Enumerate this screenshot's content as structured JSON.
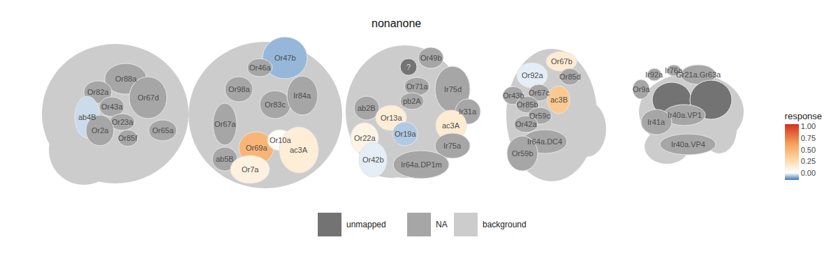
{
  "chart_data": {
    "type": "glomerulus_map",
    "title": "nonanone",
    "colorbar": {
      "title": "response",
      "range": [
        -0.15,
        1.05
      ],
      "ticks": [
        {
          "value": 0,
          "label": "0.00"
        },
        {
          "value": 0.25,
          "label": "0.25"
        },
        {
          "value": 0.5,
          "label": "0.50"
        },
        {
          "value": 0.75,
          "label": "0.75"
        },
        {
          "value": 1,
          "label": "1.00"
        }
      ]
    },
    "legend_items": [
      {
        "name": "unmapped",
        "color": "#737373"
      },
      {
        "name": "NA",
        "color": "#a6a6a6"
      },
      {
        "name": "background",
        "color": "#cccccc"
      }
    ],
    "panels": [
      {
        "glomeruli": [
          {
            "label": "Or88a",
            "status": "NA"
          },
          {
            "label": "Or82a",
            "status": "NA"
          },
          {
            "label": "Or43a",
            "status": "NA"
          },
          {
            "label": "Or67d",
            "status": "NA"
          },
          {
            "label": "ab4B",
            "response": -0.04
          },
          {
            "label": "Or23a",
            "status": "NA"
          },
          {
            "label": "Or2a",
            "status": "NA"
          },
          {
            "label": "Or85f",
            "status": "NA"
          },
          {
            "label": "Or65a",
            "status": "NA"
          }
        ]
      },
      {
        "glomeruli": [
          {
            "label": "Or47b",
            "response": -0.08
          },
          {
            "label": "Or46a",
            "status": "NA"
          },
          {
            "label": "Or98a",
            "status": "NA"
          },
          {
            "label": "Or83c",
            "status": "NA"
          },
          {
            "label": "Ir84a",
            "status": "NA"
          },
          {
            "label": "Or67a",
            "status": "NA"
          },
          {
            "label": "ab5B",
            "status": "NA"
          },
          {
            "label": "Or69a",
            "response": 0.5
          },
          {
            "label": "Or10a",
            "response": 0.03
          },
          {
            "label": "ac3A",
            "response": 0.13
          },
          {
            "label": "Or7a",
            "response": 0.1
          }
        ]
      },
      {
        "glomeruli": [
          {
            "label": "?",
            "status": "unmapped"
          },
          {
            "label": "Or49b",
            "status": "NA"
          },
          {
            "label": "Or71a",
            "status": "NA"
          },
          {
            "label": "Ir75d",
            "status": "NA"
          },
          {
            "label": "ab2B",
            "status": "NA"
          },
          {
            "label": "pb2A",
            "status": "NA"
          },
          {
            "label": "Or13a",
            "response": 0.13
          },
          {
            "label": "Ir31a",
            "status": "NA"
          },
          {
            "label": "ac3A",
            "response": 0.15
          },
          {
            "label": "Or22a",
            "response": 0.08
          },
          {
            "label": "Or19a",
            "response": -0.06
          },
          {
            "label": "Or42b",
            "response": -0.02
          },
          {
            "label": "Ir75a",
            "status": "NA"
          },
          {
            "label": "Ir64a.DP1m",
            "status": "NA"
          }
        ]
      },
      {
        "glomeruli": [
          {
            "label": "Or67b",
            "response": 0.15
          },
          {
            "label": "Or92a",
            "response": -0.02
          },
          {
            "label": "Or85d",
            "status": "NA"
          },
          {
            "label": "Or43b",
            "status": "NA"
          },
          {
            "label": "Or67c",
            "status": "NA"
          },
          {
            "label": "ac3B",
            "response": 0.38
          },
          {
            "label": "Or85b",
            "status": "NA"
          },
          {
            "label": "Or59c",
            "status": "NA"
          },
          {
            "label": "Or42a",
            "status": "NA"
          },
          {
            "label": "Ir64a.DC4",
            "status": "NA"
          },
          {
            "label": "Or59b",
            "status": "NA"
          }
        ]
      },
      {
        "glomeruli": [
          {
            "label": "Ir76a",
            "status": "NA"
          },
          {
            "label": "Ir92a",
            "status": "NA"
          },
          {
            "label": "Gr21a.Gr63a",
            "status": "NA"
          },
          {
            "label": "Or9a",
            "status": "NA"
          },
          {
            "status": "unmapped"
          },
          {
            "status": "unmapped"
          },
          {
            "label": "Ir40a.VP1",
            "status": "NA"
          },
          {
            "label": "Ir41a",
            "status": "NA"
          },
          {
            "label": "Ir40a.VP4",
            "status": "NA"
          }
        ]
      }
    ]
  }
}
